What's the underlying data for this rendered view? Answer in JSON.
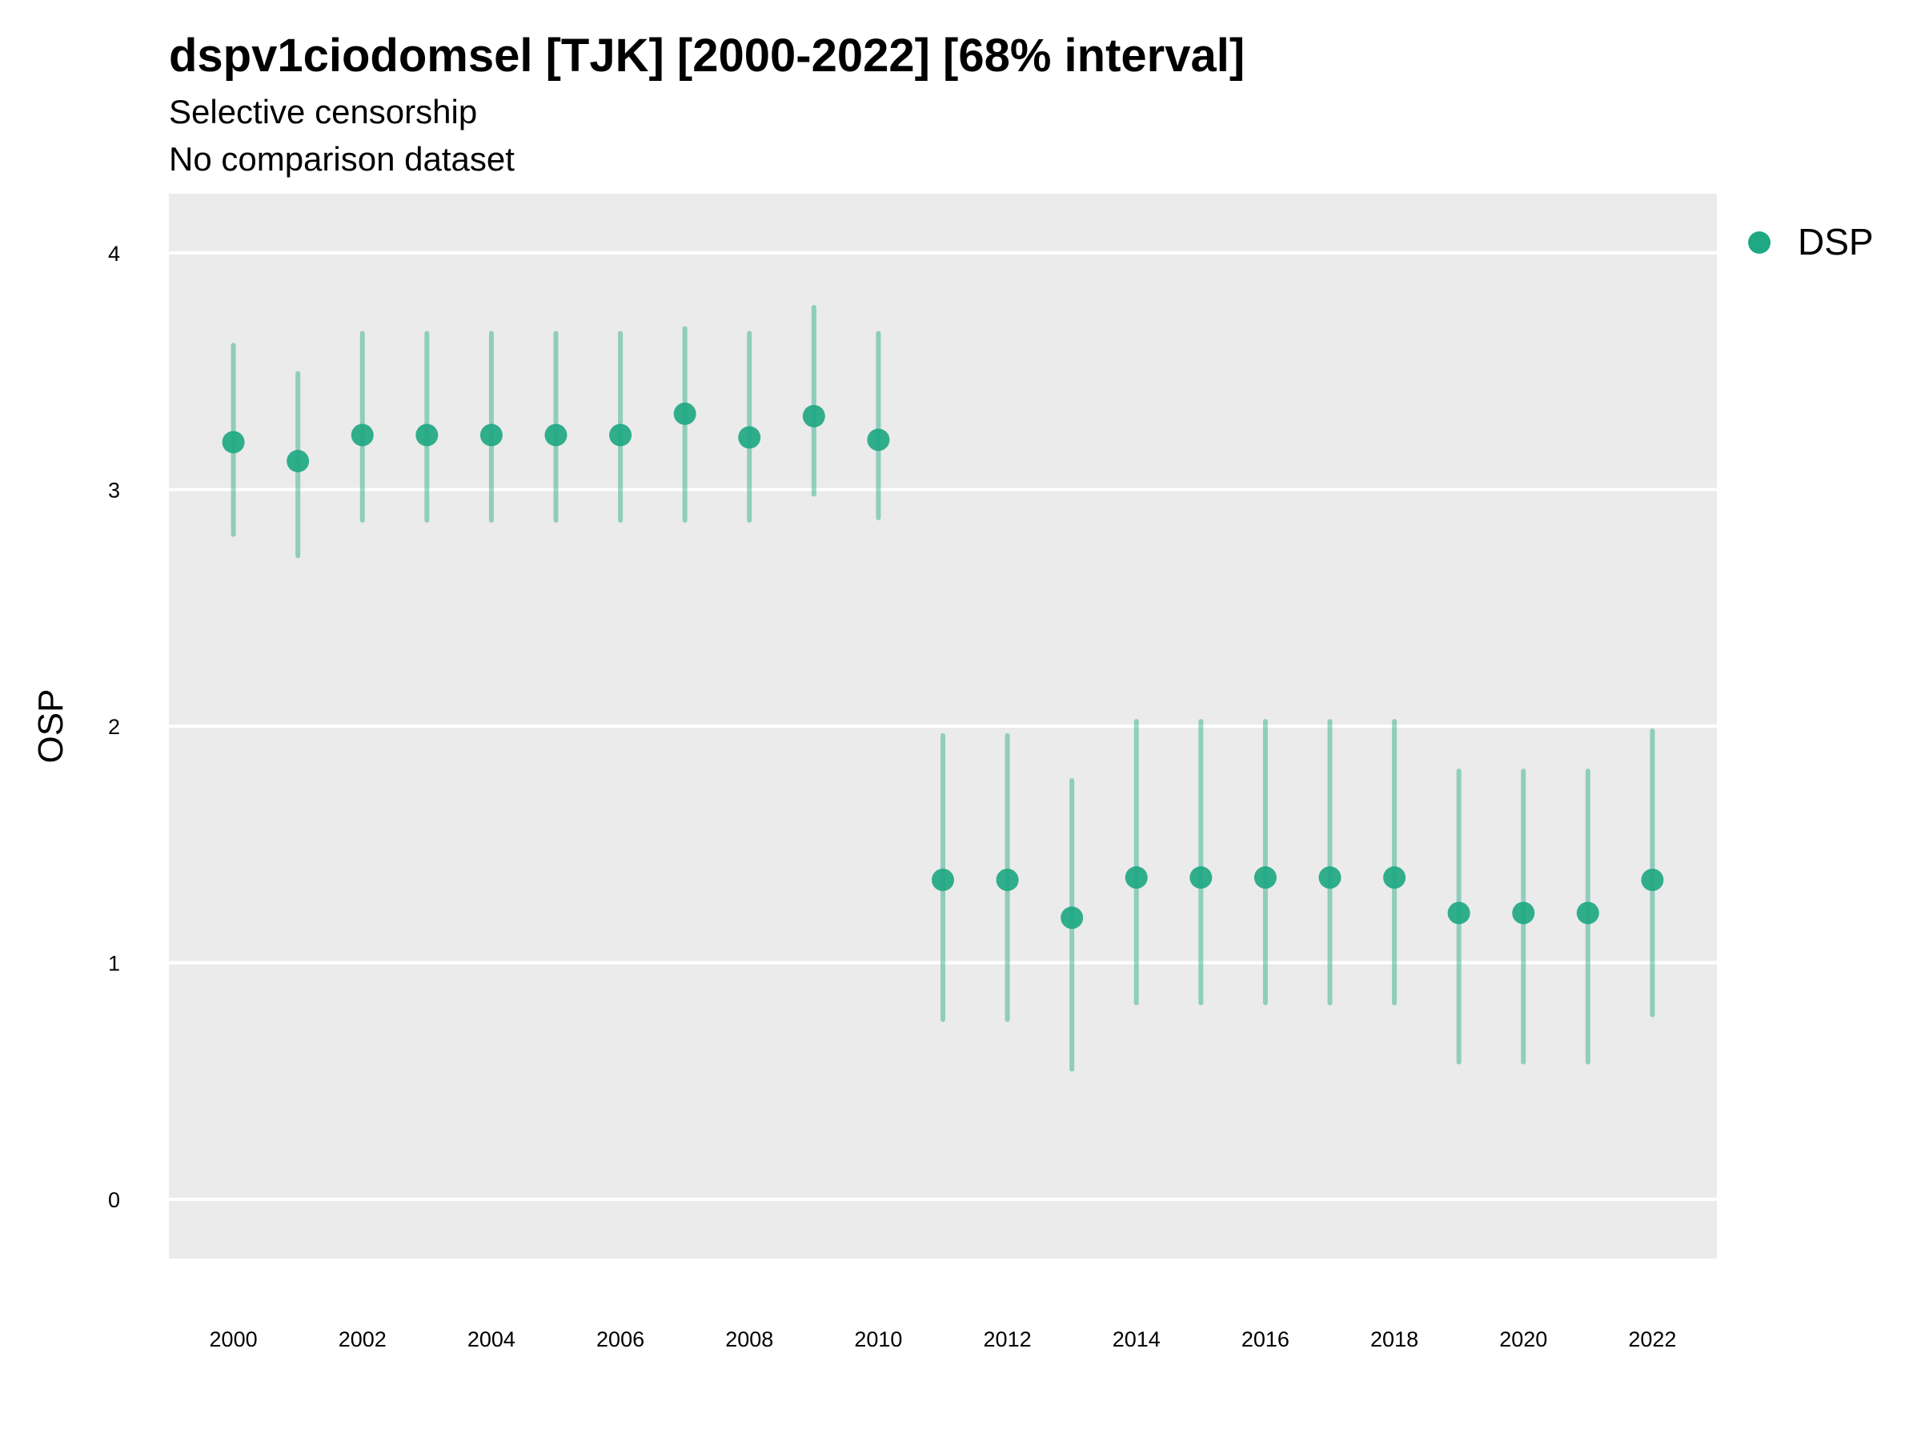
{
  "chart_data": {
    "type": "scatter",
    "title": "dspv1ciodomsel [TJK] [2000-2022] [68% interval]",
    "subtitle": "Selective censorship",
    "subtitle2": "No comparison dataset",
    "ylabel": "OSP",
    "xlabel": "",
    "xlim": [
      1999,
      2023
    ],
    "ylim": [
      -0.25,
      4.25
    ],
    "x_ticks": [
      2000,
      2002,
      2004,
      2006,
      2008,
      2010,
      2012,
      2014,
      2016,
      2018,
      2020,
      2022
    ],
    "y_ticks": [
      0,
      1,
      2,
      3,
      4
    ],
    "grid": true,
    "legend_position": "right",
    "series": [
      {
        "name": "DSP",
        "color": "#1fa882",
        "points": [
          {
            "x": 2000,
            "y": 3.2,
            "low": 2.81,
            "high": 3.61
          },
          {
            "x": 2001,
            "y": 3.12,
            "low": 2.72,
            "high": 3.49
          },
          {
            "x": 2002,
            "y": 3.23,
            "low": 2.87,
            "high": 3.66
          },
          {
            "x": 2003,
            "y": 3.23,
            "low": 2.87,
            "high": 3.66
          },
          {
            "x": 2004,
            "y": 3.23,
            "low": 2.87,
            "high": 3.66
          },
          {
            "x": 2005,
            "y": 3.23,
            "low": 2.87,
            "high": 3.66
          },
          {
            "x": 2006,
            "y": 3.23,
            "low": 2.87,
            "high": 3.66
          },
          {
            "x": 2007,
            "y": 3.32,
            "low": 2.87,
            "high": 3.68
          },
          {
            "x": 2008,
            "y": 3.22,
            "low": 2.87,
            "high": 3.66
          },
          {
            "x": 2009,
            "y": 3.31,
            "low": 2.98,
            "high": 3.77
          },
          {
            "x": 2010,
            "y": 3.21,
            "low": 2.88,
            "high": 3.66
          },
          {
            "x": 2011,
            "y": 1.35,
            "low": 0.76,
            "high": 1.96
          },
          {
            "x": 2012,
            "y": 1.35,
            "low": 0.76,
            "high": 1.96
          },
          {
            "x": 2013,
            "y": 1.19,
            "low": 0.55,
            "high": 1.77
          },
          {
            "x": 2014,
            "y": 1.36,
            "low": 0.83,
            "high": 2.02
          },
          {
            "x": 2015,
            "y": 1.36,
            "low": 0.83,
            "high": 2.02
          },
          {
            "x": 2016,
            "y": 1.36,
            "low": 0.83,
            "high": 2.02
          },
          {
            "x": 2017,
            "y": 1.36,
            "low": 0.83,
            "high": 2.02
          },
          {
            "x": 2018,
            "y": 1.36,
            "low": 0.83,
            "high": 2.02
          },
          {
            "x": 2019,
            "y": 1.21,
            "low": 0.58,
            "high": 1.81
          },
          {
            "x": 2020,
            "y": 1.21,
            "low": 0.58,
            "high": 1.81
          },
          {
            "x": 2021,
            "y": 1.21,
            "low": 0.58,
            "high": 1.81
          },
          {
            "x": 2022,
            "y": 1.35,
            "low": 0.78,
            "high": 1.98
          }
        ]
      }
    ]
  },
  "colors": {
    "panel_background": "#ebebeb",
    "gridline": "#ffffff",
    "point": "#1fa882",
    "interval": "#1fa882"
  }
}
